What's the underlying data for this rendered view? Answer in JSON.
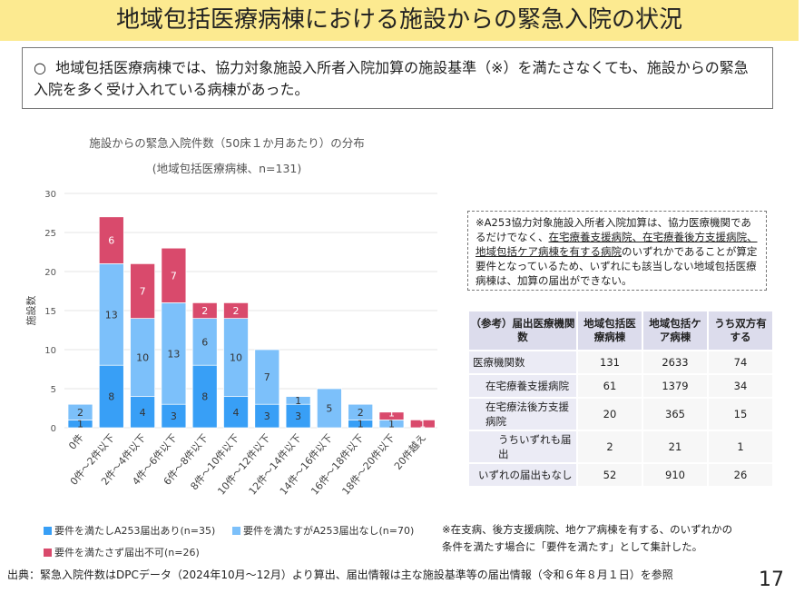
{
  "title": "地域包括医療病棟における施設からの緊急入院の状況",
  "summary": {
    "bullet": "○",
    "text": "地域包括医療病棟では、協力対象施設入所者入院加算の施設基準（※）を満たさなくても、施設からの緊急入院を多く受け入れている病棟があった。"
  },
  "chart_data": {
    "type": "bar",
    "stacked": true,
    "title": "施設からの緊急入院件数（50床１か月あたり）の分布",
    "subtitle": "(地域包括医療病棟、n=131)",
    "xlabel": "",
    "ylabel": "施設数",
    "ylim": [
      0,
      30
    ],
    "yticks": [
      0,
      5,
      10,
      15,
      20,
      25,
      30
    ],
    "grid": true,
    "legend": "bottom",
    "categories": [
      "0件",
      "0件～2件以下",
      "2件～4件以下",
      "4件～6件以下",
      "6件～8件以下",
      "8件～10件以下",
      "10件～12件以下",
      "12件～14件以下",
      "14件～16件以下",
      "16件～18件以下",
      "18件～20件以下",
      "20件越え"
    ],
    "series": [
      {
        "name": "要件を満たしA253届出あり(n=35)",
        "color": "#389ff6",
        "values": [
          1,
          8,
          4,
          3,
          8,
          4,
          3,
          3,
          0,
          1,
          0,
          0
        ]
      },
      {
        "name": "要件を満たすがA253届出なし(n=70)",
        "color": "#7cc0fa",
        "values": [
          2,
          13,
          10,
          13,
          6,
          10,
          7,
          1,
          5,
          2,
          1,
          0
        ]
      },
      {
        "name": "要件を満たさず届出不可(n=26)",
        "color": "#d94a6c",
        "values": [
          0,
          6,
          7,
          7,
          2,
          2,
          0,
          0,
          0,
          0,
          1,
          1
        ]
      }
    ]
  },
  "note": {
    "pre": "※A253協力対象施設入所者入院加算は、協力医療機関であるだけでなく、",
    "underlined": "在宅療養支援病院、在宅療養後方支援病院、地域包括ケア病棟を有する病院",
    "post": "のいずれかであることが算定要件となっているため、いずれにも該当しない地域包括医療病棟は、加算の届出ができない。"
  },
  "table": {
    "headers": [
      "（参考）届出医療機関数",
      "地域包括医療病棟",
      "地域包括ケア病棟",
      "うち双方有する"
    ],
    "rows": [
      [
        "医療機関数",
        "131",
        "2633",
        "74"
      ],
      [
        "在宅療養支援病院",
        "61",
        "1379",
        "34"
      ],
      [
        "在宅療法後方支援病院",
        "20",
        "365",
        "15"
      ],
      [
        "うちいずれも届出",
        "2",
        "21",
        "1"
      ],
      [
        "いずれの届出もなし",
        "52",
        "910",
        "26"
      ]
    ]
  },
  "asterisk_note": [
    "※在支病、後方支援病院、地ケア病棟を有する、のいずれかの",
    "条件を満たす場合に「要件を満たす」として集計した。"
  ],
  "footer": "出典：緊急入院件数はDPCデータ（2024年10月～12月）より算出、届出情報は主な施設基準等の届出情報（令和６年８月１日）を参照",
  "page_number": "17"
}
